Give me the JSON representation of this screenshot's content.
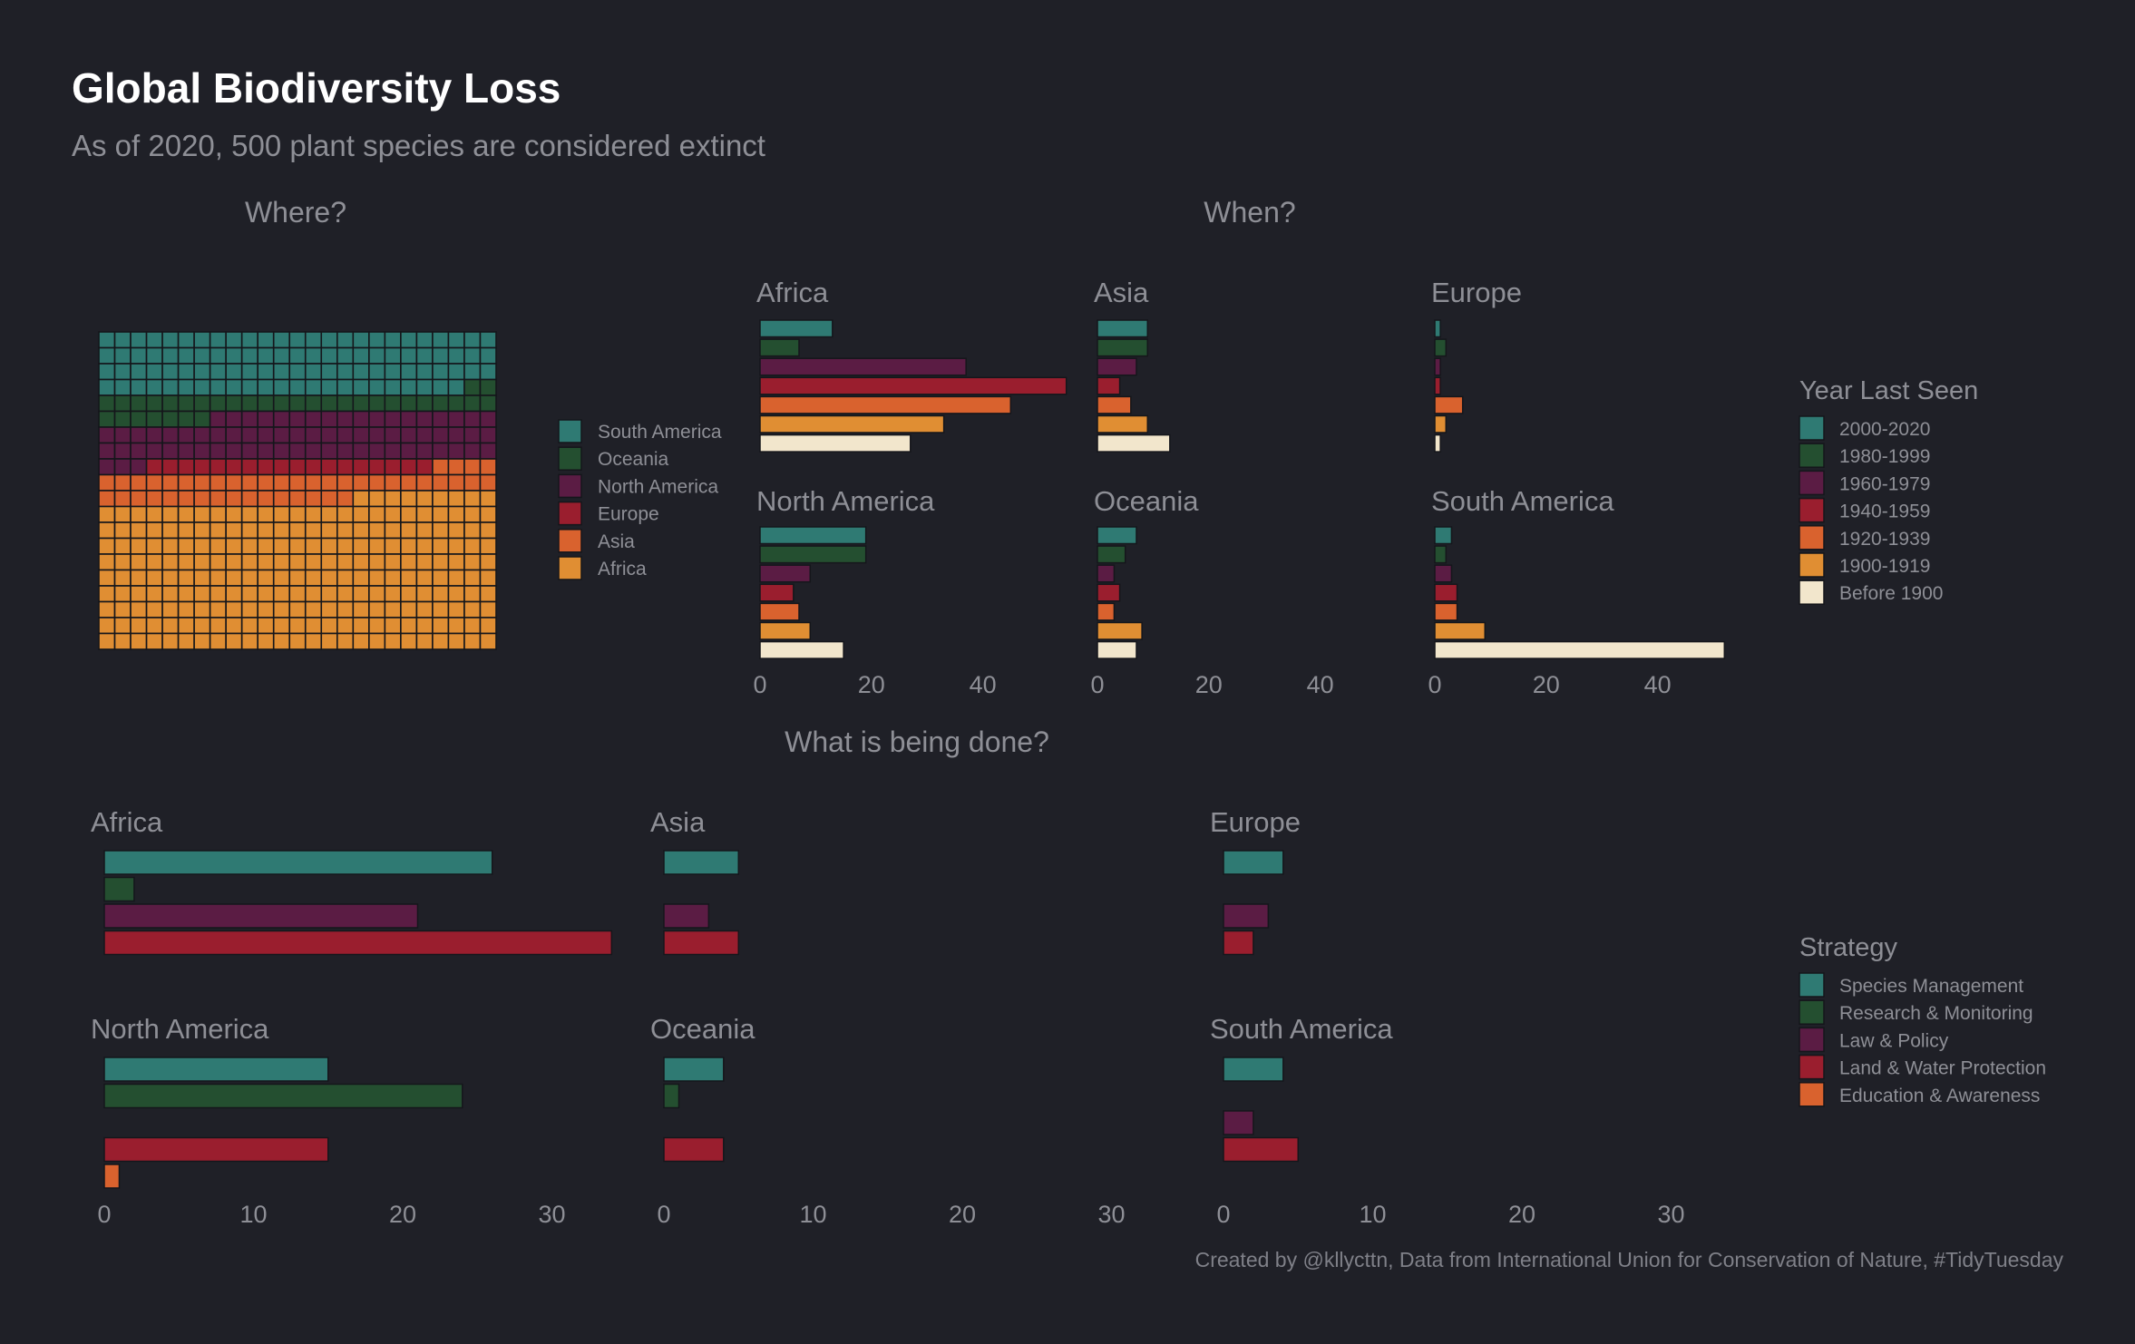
{
  "title": "Global Biodiversity Loss",
  "subtitle": "As of 2020, 500 plant species are considered extinct",
  "caption": "Created by @kllycttn, Data from International Union for Conservation of Nature, #TidyTuesday",
  "sections": {
    "where": "Where?",
    "when": "When?",
    "what": "What is being done?"
  },
  "colors": {
    "background": "#1f2027",
    "teal": "#2f7a73",
    "dark_green": "#244f30",
    "purple": "#5b1c44",
    "red": "#9a1e2e",
    "orange_red": "#d9622e",
    "orange": "#e08e33",
    "cream": "#f2e6cc",
    "text_muted": "#8e8f96"
  },
  "chart_data": [
    {
      "id": "where",
      "type": "waffle",
      "total": 500,
      "legend": [
        {
          "label": "South America",
          "color": "#2f7a73"
        },
        {
          "label": "Oceania",
          "color": "#244f30"
        },
        {
          "label": "North America",
          "color": "#5b1c44"
        },
        {
          "label": "Europe",
          "color": "#9a1e2e"
        },
        {
          "label": "Asia",
          "color": "#d9622e"
        },
        {
          "label": "Africa",
          "color": "#e08e33"
        }
      ],
      "grid": {
        "columns": 25,
        "rows": 20
      },
      "counts": [
        {
          "label": "South America",
          "value": 98
        },
        {
          "label": "Oceania",
          "value": 34
        },
        {
          "label": "North America",
          "value": 71
        },
        {
          "label": "Europe",
          "value": 18
        },
        {
          "label": "Asia",
          "value": 45
        },
        {
          "label": "Africa",
          "value": 234
        }
      ]
    },
    {
      "id": "when",
      "type": "bar",
      "orientation": "horizontal",
      "legend_title": "Year Last Seen",
      "categories": [
        "2000-2020",
        "1980-1999",
        "1960-1979",
        "1940-1959",
        "1920-1939",
        "1900-1919",
        "Before 1900"
      ],
      "colors": [
        "#2f7a73",
        "#244f30",
        "#5b1c44",
        "#9a1e2e",
        "#d9622e",
        "#e08e33",
        "#f2e6cc"
      ],
      "xlim": [
        0,
        55
      ],
      "xticks": [
        0,
        20,
        40
      ],
      "panels": [
        {
          "name": "Africa",
          "values": [
            13,
            7,
            37,
            55,
            45,
            33,
            27
          ]
        },
        {
          "name": "Asia",
          "values": [
            9,
            9,
            7,
            4,
            6,
            9,
            13
          ]
        },
        {
          "name": "Europe",
          "values": [
            1,
            2,
            1,
            1,
            5,
            2,
            1
          ]
        },
        {
          "name": "North America",
          "values": [
            19,
            19,
            9,
            6,
            7,
            9,
            15
          ]
        },
        {
          "name": "Oceania",
          "values": [
            7,
            5,
            3,
            4,
            3,
            8,
            7
          ]
        },
        {
          "name": "South America",
          "values": [
            3,
            2,
            3,
            4,
            4,
            9,
            52
          ]
        }
      ]
    },
    {
      "id": "what",
      "type": "bar",
      "orientation": "horizontal",
      "legend_title": "Strategy",
      "categories": [
        "Species Management",
        "Research & Monitoring",
        "Law & Policy",
        "Land & Water Protection",
        "Education & Awareness"
      ],
      "colors": [
        "#2f7a73",
        "#244f30",
        "#5b1c44",
        "#9a1e2e",
        "#d9622e"
      ],
      "xlim": [
        0,
        34
      ],
      "xticks": [
        0,
        10,
        20,
        30
      ],
      "panels": [
        {
          "name": "Africa",
          "values": [
            26,
            2,
            21,
            34,
            0
          ]
        },
        {
          "name": "Asia",
          "values": [
            5,
            0,
            3,
            5,
            0
          ]
        },
        {
          "name": "Europe",
          "values": [
            4,
            0,
            3,
            2,
            0
          ]
        },
        {
          "name": "North America",
          "values": [
            15,
            24,
            0,
            15,
            1
          ]
        },
        {
          "name": "Oceania",
          "values": [
            4,
            1,
            0,
            4,
            0
          ]
        },
        {
          "name": "South America",
          "values": [
            4,
            0,
            2,
            5,
            0
          ]
        }
      ]
    }
  ]
}
